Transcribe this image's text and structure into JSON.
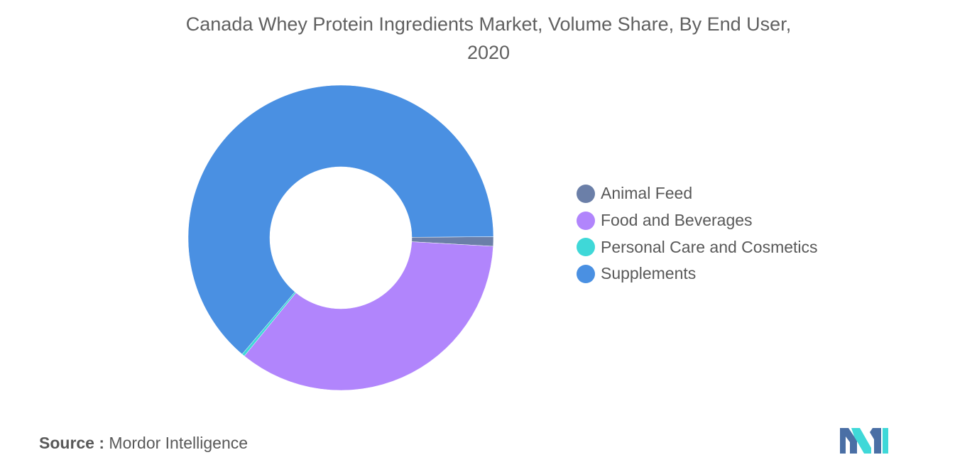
{
  "title_line1": "Canada Whey Protein Ingredients Market, Volume Share, By End User,",
  "title_line2": "2020",
  "source": {
    "label": "Source :",
    "text": "Mordor Intelligence"
  },
  "chart_data": {
    "type": "pie",
    "donut": true,
    "title": "Canada Whey Protein Ingredients Market, Volume Share, By End User, 2020",
    "legend_position": "right",
    "series": [
      {
        "name": "Animal Feed",
        "value": 1.0,
        "color": "#6b7fa8"
      },
      {
        "name": "Food and Beverages",
        "value": 35.0,
        "color": "#b185fc"
      },
      {
        "name": "Personal Care and Cosmetics",
        "value": 0.3,
        "color": "#3fd8d8"
      },
      {
        "name": "Supplements",
        "value": 63.7,
        "color": "#4a90e2"
      }
    ]
  },
  "legend": [
    {
      "label": "Animal Feed",
      "color": "#6b7fa8"
    },
    {
      "label": "Food and Beverages",
      "color": "#b185fc"
    },
    {
      "label": "Personal Care and Cosmetics",
      "color": "#3fd8d8"
    },
    {
      "label": "Supplements",
      "color": "#4a90e2"
    }
  ],
  "logo": {
    "colors": [
      "#4a6fa5",
      "#3fd8d8"
    ]
  }
}
